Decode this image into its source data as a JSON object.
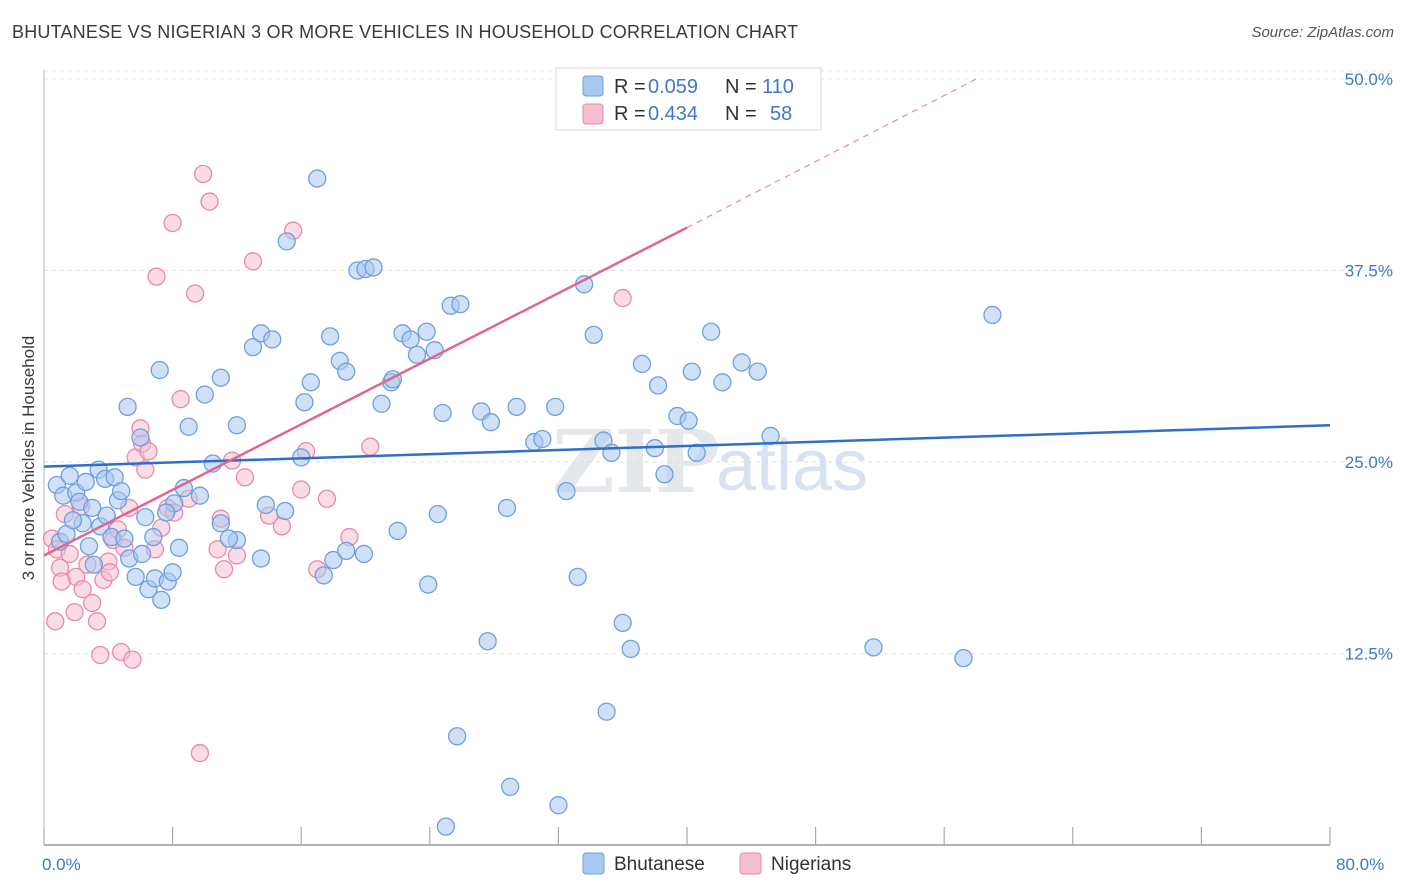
{
  "title": "BHUTANESE VS NIGERIAN 3 OR MORE VEHICLES IN HOUSEHOLD CORRELATION CHART",
  "source": "Source: ZipAtlas.com",
  "watermark": {
    "part1": "ZIP",
    "part2": "atlas"
  },
  "colors": {
    "blue_fill": "#a9c8f0",
    "blue_stroke": "#6f9fdc",
    "blue_line": "#2f6fc8",
    "pink_fill": "#f6bfd0",
    "pink_stroke": "#e98aa8",
    "pink_line": "#e0658f",
    "grid": "#e3e3e3",
    "tick_text": "#3f78c8"
  },
  "legend": {
    "row1": {
      "r_label": "R =",
      "r_value": "0.059",
      "n_label": "N =",
      "n_value": "110"
    },
    "row2": {
      "r_label": "R =",
      "r_value": "0.434",
      "n_label": "N =",
      "n_value": "58"
    }
  },
  "chart_data": {
    "type": "scatter",
    "title": "BHUTANESE VS NIGERIAN 3 OR MORE VEHICLES IN HOUSEHOLD CORRELATION CHART",
    "xlabel": "",
    "ylabel": "3 or more Vehicles in Household",
    "xlim": [
      0,
      80
    ],
    "ylim": [
      0,
      50
    ],
    "x_tick_labels": [
      "0.0%",
      "80.0%"
    ],
    "y_tick_labels": [
      "12.5%",
      "25.0%",
      "37.5%",
      "50.0%"
    ],
    "y_ticks": [
      12.5,
      25.0,
      37.5,
      50.0
    ],
    "grid": true,
    "legend_position": "top-center",
    "series": [
      {
        "name": "Bhutanese",
        "color": "#a9c8f0",
        "trend": {
          "x": [
            0,
            80
          ],
          "y": [
            24.7,
            27.4
          ],
          "dashed_extension": false
        },
        "points": [
          [
            0.8,
            23.5
          ],
          [
            1.2,
            22.8
          ],
          [
            1.6,
            24.1
          ],
          [
            2.0,
            23.0
          ],
          [
            2.4,
            21.0
          ],
          [
            2.8,
            19.5
          ],
          [
            3.1,
            18.3
          ],
          [
            3.5,
            20.8
          ],
          [
            3.9,
            21.5
          ],
          [
            4.2,
            20.1
          ],
          [
            4.6,
            22.5
          ],
          [
            5.0,
            20.0
          ],
          [
            5.3,
            18.7
          ],
          [
            5.7,
            17.5
          ],
          [
            6.1,
            19.0
          ],
          [
            6.5,
            16.7
          ],
          [
            6.9,
            17.4
          ],
          [
            7.3,
            16.0
          ],
          [
            7.7,
            17.2
          ],
          [
            8.0,
            17.8
          ],
          [
            1.0,
            19.8
          ],
          [
            1.4,
            20.3
          ],
          [
            1.8,
            21.2
          ],
          [
            2.2,
            22.4
          ],
          [
            2.6,
            23.7
          ],
          [
            3.0,
            22.0
          ],
          [
            3.4,
            24.5
          ],
          [
            3.8,
            23.9
          ],
          [
            4.4,
            24.0
          ],
          [
            4.8,
            23.1
          ],
          [
            5.2,
            28.6
          ],
          [
            6.0,
            26.6
          ],
          [
            7.2,
            31.0
          ],
          [
            9.0,
            27.3
          ],
          [
            10.0,
            29.4
          ],
          [
            11.0,
            30.5
          ],
          [
            12.0,
            27.4
          ],
          [
            13.0,
            32.5
          ],
          [
            13.5,
            33.4
          ],
          [
            14.2,
            33.0
          ],
          [
            15.1,
            39.4
          ],
          [
            16.2,
            28.9
          ],
          [
            16.6,
            30.2
          ],
          [
            17.0,
            43.5
          ],
          [
            17.8,
            33.2
          ],
          [
            18.4,
            31.6
          ],
          [
            18.8,
            30.9
          ],
          [
            19.5,
            37.5
          ],
          [
            20.0,
            37.6
          ],
          [
            20.5,
            37.7
          ],
          [
            21.0,
            28.8
          ],
          [
            21.6,
            30.2
          ],
          [
            22.3,
            33.4
          ],
          [
            22.8,
            33.0
          ],
          [
            23.2,
            32.0
          ],
          [
            23.8,
            33.5
          ],
          [
            24.3,
            32.3
          ],
          [
            24.8,
            28.2
          ],
          [
            25.3,
            35.2
          ],
          [
            25.9,
            35.3
          ],
          [
            18.0,
            18.6
          ],
          [
            17.4,
            17.6
          ],
          [
            13.5,
            18.7
          ],
          [
            12.0,
            19.9
          ],
          [
            11.0,
            21.0
          ],
          [
            10.5,
            24.9
          ],
          [
            9.7,
            22.8
          ],
          [
            8.7,
            23.3
          ],
          [
            8.1,
            22.3
          ],
          [
            7.6,
            21.7
          ],
          [
            6.8,
            20.1
          ],
          [
            6.3,
            21.4
          ],
          [
            11.5,
            20.0
          ],
          [
            13.8,
            22.2
          ],
          [
            15.0,
            21.8
          ],
          [
            16.0,
            25.3
          ],
          [
            18.8,
            19.2
          ],
          [
            22.0,
            20.5
          ],
          [
            24.5,
            21.6
          ],
          [
            23.9,
            17.0
          ],
          [
            27.6,
            13.3
          ],
          [
            27.2,
            28.3
          ],
          [
            27.8,
            27.6
          ],
          [
            28.8,
            22.0
          ],
          [
            29.4,
            28.6
          ],
          [
            30.5,
            26.3
          ],
          [
            31.0,
            26.5
          ],
          [
            31.8,
            28.6
          ],
          [
            32.5,
            23.1
          ],
          [
            33.2,
            17.5
          ],
          [
            33.6,
            36.6
          ],
          [
            34.2,
            33.3
          ],
          [
            34.8,
            26.4
          ],
          [
            35.3,
            25.6
          ],
          [
            36.0,
            14.5
          ],
          [
            36.5,
            12.8
          ],
          [
            37.2,
            31.4
          ],
          [
            38.0,
            25.9
          ],
          [
            38.6,
            24.2
          ],
          [
            38.2,
            30.0
          ],
          [
            39.4,
            28.0
          ],
          [
            40.1,
            27.7
          ],
          [
            40.6,
            25.6
          ],
          [
            40.3,
            30.9
          ],
          [
            41.5,
            33.5
          ],
          [
            42.2,
            30.2
          ],
          [
            43.4,
            31.5
          ],
          [
            44.4,
            30.9
          ],
          [
            45.2,
            26.7
          ],
          [
            51.6,
            12.9
          ],
          [
            59.0,
            34.6
          ],
          [
            57.2,
            12.2
          ],
          [
            29.0,
            3.8
          ],
          [
            35.0,
            8.7
          ],
          [
            25.7,
            7.1
          ],
          [
            25.0,
            1.2
          ],
          [
            32.0,
            2.6
          ],
          [
            21.7,
            30.4
          ],
          [
            19.9,
            19.0
          ],
          [
            8.4,
            19.4
          ]
        ]
      },
      {
        "name": "Nigerians",
        "color": "#f6bfd0",
        "trend": {
          "x": [
            0,
            40
          ],
          "y": [
            18.9,
            40.3
          ],
          "dashed_extension": true,
          "dashed_to": [
            58,
            50
          ]
        },
        "points": [
          [
            0.5,
            20.0
          ],
          [
            0.8,
            19.3
          ],
          [
            1.0,
            18.1
          ],
          [
            1.3,
            21.6
          ],
          [
            1.6,
            19.0
          ],
          [
            2.0,
            17.5
          ],
          [
            2.3,
            22.1
          ],
          [
            2.7,
            18.3
          ],
          [
            3.0,
            15.8
          ],
          [
            3.3,
            14.6
          ],
          [
            3.7,
            17.3
          ],
          [
            4.0,
            18.5
          ],
          [
            4.3,
            19.9
          ],
          [
            4.6,
            20.6
          ],
          [
            5.0,
            19.4
          ],
          [
            5.3,
            22.0
          ],
          [
            5.7,
            25.3
          ],
          [
            6.1,
            26.2
          ],
          [
            6.5,
            25.7
          ],
          [
            6.9,
            19.3
          ],
          [
            7.3,
            20.7
          ],
          [
            7.7,
            22.0
          ],
          [
            8.1,
            21.7
          ],
          [
            8.5,
            29.1
          ],
          [
            9.0,
            22.6
          ],
          [
            9.4,
            36.0
          ],
          [
            9.9,
            43.8
          ],
          [
            10.3,
            42.0
          ],
          [
            10.8,
            19.3
          ],
          [
            11.2,
            18.0
          ],
          [
            11.7,
            25.1
          ],
          [
            12.0,
            18.9
          ],
          [
            13.0,
            38.1
          ],
          [
            14.0,
            21.5
          ],
          [
            14.8,
            20.8
          ],
          [
            15.5,
            40.1
          ],
          [
            16.0,
            23.2
          ],
          [
            16.3,
            25.7
          ],
          [
            17.0,
            18.0
          ],
          [
            17.6,
            22.6
          ],
          [
            0.7,
            14.6
          ],
          [
            1.1,
            17.2
          ],
          [
            1.9,
            15.2
          ],
          [
            2.4,
            16.7
          ],
          [
            3.5,
            12.4
          ],
          [
            4.1,
            17.8
          ],
          [
            4.8,
            12.6
          ],
          [
            5.5,
            12.1
          ],
          [
            6.0,
            27.2
          ],
          [
            6.3,
            24.5
          ],
          [
            7.0,
            37.1
          ],
          [
            8.0,
            40.6
          ],
          [
            9.7,
            6.0
          ],
          [
            11.0,
            21.3
          ],
          [
            12.5,
            24.0
          ],
          [
            19.0,
            20.1
          ],
          [
            20.3,
            26.0
          ],
          [
            36.0,
            35.7
          ]
        ]
      }
    ]
  },
  "bottom_legend": {
    "item1": "Bhutanese",
    "item2": "Nigerians"
  }
}
